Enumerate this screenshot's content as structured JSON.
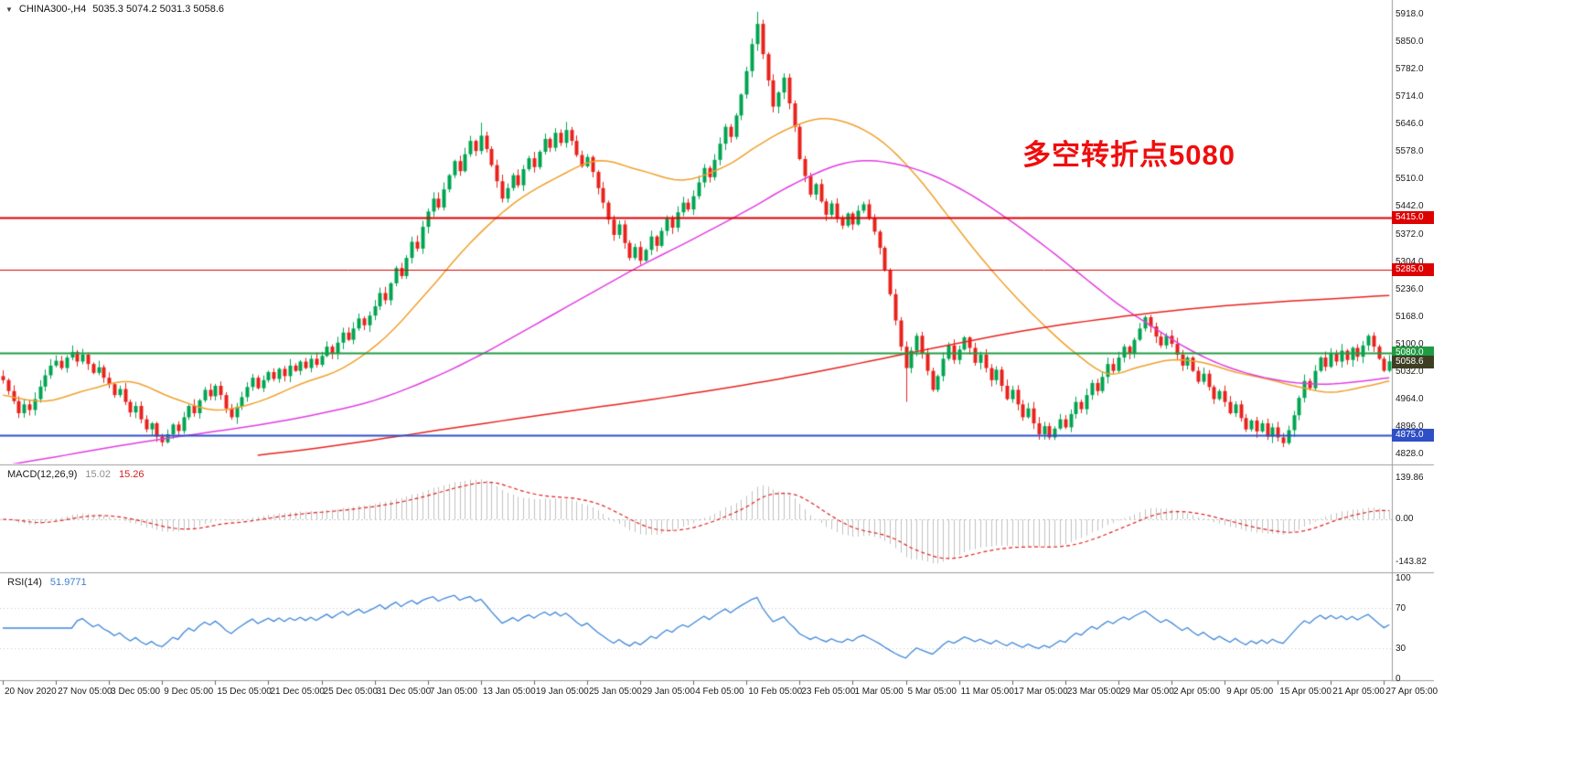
{
  "header": {
    "collapse_icon": "▼",
    "symbol_period": "CHINA300-,H4",
    "ohlc_text": "5035.3 5074.2 5031.3 5058.6",
    "open": "5035.3",
    "high": "5074.2",
    "low": "5031.3",
    "close": "5058.6"
  },
  "annotation": {
    "text": "多空转折点5080",
    "color": "#f00d0d"
  },
  "macd_panel": {
    "title": "MACD(12,26,9)",
    "macd_value": "15.02",
    "signal_value": "15.26",
    "axis_labels": [
      "139.86",
      "0.00",
      "-143.82"
    ],
    "histogram_color": "#c0c0c0",
    "signal_color": "#e02020"
  },
  "rsi_panel": {
    "title": "RSI(14)",
    "value": "51.9771",
    "axis_labels": [
      "100",
      "70",
      "30",
      "0"
    ],
    "levels": [
      70,
      30
    ],
    "line_color": "#3f87d9"
  },
  "time_axis": {
    "labels": [
      {
        "bar": 0,
        "text": "20 Nov 2020"
      },
      {
        "bar": 10,
        "text": "27 Nov 05:00"
      },
      {
        "bar": 20,
        "text": "3 Dec 05:00"
      },
      {
        "bar": 30,
        "text": "9 Dec 05:00"
      },
      {
        "bar": 40,
        "text": "15 Dec 05:00"
      },
      {
        "bar": 50,
        "text": "21 Dec 05:00"
      },
      {
        "bar": 60,
        "text": "25 Dec 05:00"
      },
      {
        "bar": 70,
        "text": "31 Dec 05:00"
      },
      {
        "bar": 80,
        "text": "7 Jan 05:00"
      },
      {
        "bar": 90,
        "text": "13 Jan 05:00"
      },
      {
        "bar": 100,
        "text": "19 Jan 05:00"
      },
      {
        "bar": 110,
        "text": "25 Jan 05:00"
      },
      {
        "bar": 120,
        "text": "29 Jan 05:00"
      },
      {
        "bar": 130,
        "text": "4 Feb 05:00"
      },
      {
        "bar": 140,
        "text": "10 Feb 05:00"
      },
      {
        "bar": 150,
        "text": "23 Feb 05:00"
      },
      {
        "bar": 160,
        "text": "1 Mar 05:00"
      },
      {
        "bar": 170,
        "text": "5 Mar 05:00"
      },
      {
        "bar": 180,
        "text": "11 Mar 05:00"
      },
      {
        "bar": 190,
        "text": "17 Mar 05:00"
      },
      {
        "bar": 200,
        "text": "23 Mar 05:00"
      },
      {
        "bar": 210,
        "text": "29 Mar 05:00"
      },
      {
        "bar": 220,
        "text": "2 Apr 05:00"
      },
      {
        "bar": 230,
        "text": "9 Apr 05:00"
      },
      {
        "bar": 240,
        "text": "15 Apr 05:00"
      },
      {
        "bar": 250,
        "text": "21 Apr 05:00"
      },
      {
        "bar": 260,
        "text": "27 Apr 05:00"
      }
    ]
  },
  "chart_data": {
    "type": "candlestick",
    "title": "CHINA300-,H4",
    "symbol": "CHINA300-",
    "timeframe": "H4",
    "grid": false,
    "legend": false,
    "up_color": "#00a551",
    "down_color": "#e8221c",
    "y_axis": {
      "top_price": 5918,
      "bottom_price": 4828,
      "ticks": [
        "5918.0",
        "5850.0",
        "5782.0",
        "5714.0",
        "5646.0",
        "5578.0",
        "5510.0",
        "5442.0",
        "5372.0",
        "5304.0",
        "5236.0",
        "5168.0",
        "5100.0",
        "5032.0",
        "4964.0",
        "4896.0",
        "4828.0"
      ]
    },
    "closes": [
      5012,
      4985,
      4960,
      4930,
      4952,
      4938,
      4965,
      4996,
      5024,
      5048,
      5060,
      5042,
      5068,
      5082,
      5058,
      5075,
      5052,
      5030,
      5044,
      5018,
      5002,
      4975,
      4990,
      4958,
      4932,
      4948,
      4915,
      4890,
      4905,
      4872,
      4858,
      4878,
      4902,
      4886,
      4920,
      4948,
      4930,
      4962,
      4988,
      4972,
      4998,
      4975,
      4942,
      4920,
      4946,
      4970,
      4995,
      5018,
      4992,
      5012,
      5032,
      5015,
      5040,
      5022,
      5048,
      5035,
      5058,
      5042,
      5065,
      5050,
      5072,
      5095,
      5078,
      5105,
      5130,
      5112,
      5140,
      5165,
      5148,
      5172,
      5195,
      5228,
      5210,
      5252,
      5290,
      5270,
      5315,
      5355,
      5338,
      5392,
      5430,
      5462,
      5440,
      5485,
      5520,
      5555,
      5530,
      5572,
      5605,
      5580,
      5618,
      5585,
      5545,
      5505,
      5462,
      5488,
      5520,
      5495,
      5535,
      5562,
      5540,
      5578,
      5610,
      5588,
      5625,
      5600,
      5632,
      5605,
      5570,
      5542,
      5565,
      5528,
      5488,
      5452,
      5410,
      5372,
      5398,
      5352,
      5315,
      5342,
      5308,
      5335,
      5368,
      5345,
      5382,
      5412,
      5390,
      5428,
      5452,
      5435,
      5468,
      5502,
      5538,
      5515,
      5558,
      5598,
      5640,
      5615,
      5668,
      5720,
      5778,
      5845,
      5895,
      5820,
      5755,
      5690,
      5725,
      5762,
      5698,
      5640,
      5560,
      5518,
      5472,
      5498,
      5455,
      5422,
      5450,
      5412,
      5395,
      5425,
      5398,
      5432,
      5448,
      5415,
      5380,
      5340,
      5285,
      5225,
      5160,
      5095,
      5042,
      5085,
      5122,
      5078,
      5035,
      4988,
      5022,
      5065,
      5098,
      5062,
      5088,
      5118,
      5092,
      5055,
      5075,
      5042,
      5012,
      5038,
      4998,
      4965,
      4988,
      4952,
      4920,
      4942,
      4905,
      4878,
      4898,
      4870,
      4892,
      4915,
      4895,
      4928,
      4958,
      4940,
      4975,
      5005,
      4985,
      5020,
      5052,
      5035,
      5068,
      5095,
      5078,
      5112,
      5140,
      5168,
      5145,
      5120,
      5098,
      5122,
      5102,
      5075,
      5048,
      5068,
      5035,
      5008,
      5028,
      4995,
      4965,
      4985,
      4958,
      4930,
      4952,
      4918,
      4890,
      4912,
      4885,
      4905,
      4872,
      4895,
      4870,
      4856,
      4888,
      4925,
      4968,
      5010,
      4992,
      5035,
      5068,
      5045,
      5078,
      5058,
      5085,
      5062,
      5092,
      5070,
      5098,
      5122,
      5095,
      5065,
      5035.3,
      5058.6
    ],
    "wick_overrides": {
      "30": {
        "low": 4848
      },
      "90": {
        "high": 5650
      },
      "106": {
        "high": 5652
      },
      "142": {
        "high": 5925
      },
      "170": {
        "low": 4958
      },
      "241": {
        "low": 4846
      },
      "261": {
        "high": 5074.2,
        "low": 5031.3
      }
    },
    "current_price": {
      "value": 5058.6,
      "label": "5058.6",
      "label_bg": "#3e3e23"
    },
    "levels": [
      {
        "price": 5415,
        "label": "5415.0",
        "color": "#dd0000",
        "label_bg": "#dd0000",
        "width": 2
      },
      {
        "price": 5285,
        "label": "5285.0",
        "color": "#dd0000",
        "label_bg": "#dd0000",
        "width": 1
      },
      {
        "price": 5080,
        "label": "5080.0",
        "color": "#209b43",
        "label_bg": "#209b43",
        "width": 2
      },
      {
        "price": 4875,
        "label": "4875.0",
        "color": "#2e4fc5",
        "label_bg": "#2e4fc5",
        "width": 2
      }
    ],
    "moving_averages": [
      {
        "name": "MA-fast",
        "color": "#efa02c",
        "anchors": [
          [
            0,
            4975
          ],
          [
            8,
            4960
          ],
          [
            16,
            4988
          ],
          [
            24,
            5008
          ],
          [
            32,
            4968
          ],
          [
            40,
            4938
          ],
          [
            48,
            4958
          ],
          [
            56,
            5002
          ],
          [
            64,
            5042
          ],
          [
            72,
            5118
          ],
          [
            80,
            5232
          ],
          [
            88,
            5352
          ],
          [
            96,
            5448
          ],
          [
            104,
            5512
          ],
          [
            112,
            5556
          ],
          [
            120,
            5532
          ],
          [
            128,
            5508
          ],
          [
            136,
            5542
          ],
          [
            142,
            5592
          ],
          [
            148,
            5636
          ],
          [
            154,
            5660
          ],
          [
            160,
            5645
          ],
          [
            166,
            5598
          ],
          [
            172,
            5518
          ],
          [
            178,
            5418
          ],
          [
            184,
            5318
          ],
          [
            190,
            5228
          ],
          [
            196,
            5148
          ],
          [
            202,
            5078
          ],
          [
            208,
            5028
          ],
          [
            214,
            5045
          ],
          [
            220,
            5062
          ],
          [
            226,
            5055
          ],
          [
            232,
            5032
          ],
          [
            238,
            5015
          ],
          [
            244,
            4995
          ],
          [
            250,
            4982
          ],
          [
            256,
            4995
          ],
          [
            261,
            5010
          ]
        ]
      },
      {
        "name": "MA-mid",
        "color": "#e13ce1",
        "anchors": [
          [
            0,
            4800
          ],
          [
            10,
            4822
          ],
          [
            20,
            4845
          ],
          [
            30,
            4866
          ],
          [
            40,
            4885
          ],
          [
            50,
            4905
          ],
          [
            60,
            4930
          ],
          [
            70,
            4962
          ],
          [
            80,
            5012
          ],
          [
            90,
            5075
          ],
          [
            100,
            5148
          ],
          [
            110,
            5222
          ],
          [
            120,
            5295
          ],
          [
            130,
            5362
          ],
          [
            140,
            5432
          ],
          [
            148,
            5492
          ],
          [
            156,
            5540
          ],
          [
            162,
            5556
          ],
          [
            168,
            5548
          ],
          [
            174,
            5525
          ],
          [
            180,
            5488
          ],
          [
            186,
            5440
          ],
          [
            192,
            5385
          ],
          [
            198,
            5325
          ],
          [
            204,
            5262
          ],
          [
            210,
            5200
          ],
          [
            216,
            5148
          ],
          [
            222,
            5098
          ],
          [
            228,
            5058
          ],
          [
            234,
            5030
          ],
          [
            240,
            5012
          ],
          [
            246,
            5003
          ],
          [
            252,
            5004
          ],
          [
            261,
            5018
          ]
        ]
      },
      {
        "name": "MA-slow",
        "color": "#e8221c",
        "anchors": [
          [
            48,
            4826
          ],
          [
            60,
            4845
          ],
          [
            72,
            4868
          ],
          [
            84,
            4892
          ],
          [
            96,
            4915
          ],
          [
            108,
            4938
          ],
          [
            120,
            4960
          ],
          [
            132,
            4984
          ],
          [
            144,
            5010
          ],
          [
            156,
            5040
          ],
          [
            168,
            5072
          ],
          [
            180,
            5104
          ],
          [
            192,
            5134
          ],
          [
            204,
            5158
          ],
          [
            216,
            5178
          ],
          [
            228,
            5194
          ],
          [
            240,
            5206
          ],
          [
            252,
            5215
          ],
          [
            261,
            5222
          ]
        ]
      }
    ],
    "indicators": {
      "macd": {
        "fast": 12,
        "slow": 26,
        "signal": 9,
        "current_macd": 15.02,
        "current_signal": 15.26
      },
      "rsi": {
        "period": 14,
        "current": 51.9771,
        "levels": [
          70,
          30
        ]
      }
    }
  }
}
